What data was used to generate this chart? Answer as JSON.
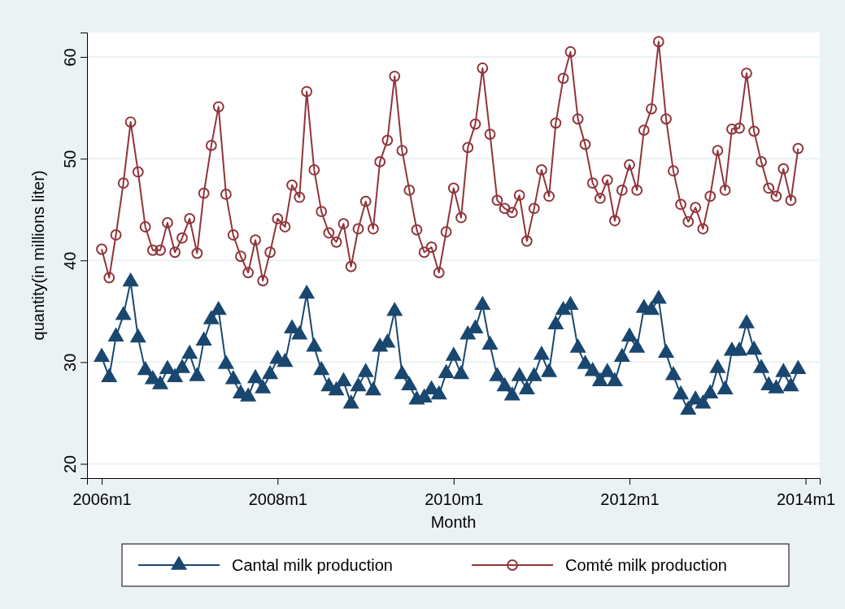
{
  "chart_data": {
    "type": "line",
    "xlabel": "Month",
    "ylabel": "quantity(in millions liter)",
    "x": [
      "2006-01",
      "2006-02",
      "2006-03",
      "2006-04",
      "2006-05",
      "2006-06",
      "2006-07",
      "2006-08",
      "2006-09",
      "2006-10",
      "2006-11",
      "2006-12",
      "2007-01",
      "2007-02",
      "2007-03",
      "2007-04",
      "2007-05",
      "2007-06",
      "2007-07",
      "2007-08",
      "2007-09",
      "2007-10",
      "2007-11",
      "2007-12",
      "2008-01",
      "2008-02",
      "2008-03",
      "2008-04",
      "2008-05",
      "2008-06",
      "2008-07",
      "2008-08",
      "2008-09",
      "2008-10",
      "2008-11",
      "2008-12",
      "2009-01",
      "2009-02",
      "2009-03",
      "2009-04",
      "2009-05",
      "2009-06",
      "2009-07",
      "2009-08",
      "2009-09",
      "2009-10",
      "2009-11",
      "2009-12",
      "2010-01",
      "2010-02",
      "2010-03",
      "2010-04",
      "2010-05",
      "2010-06",
      "2010-07",
      "2010-08",
      "2010-09",
      "2010-10",
      "2010-11",
      "2010-12",
      "2011-01",
      "2011-02",
      "2011-03",
      "2011-04",
      "2011-05",
      "2011-06",
      "2011-07",
      "2011-08",
      "2011-09",
      "2011-10",
      "2011-11",
      "2011-12",
      "2012-01",
      "2012-02",
      "2012-03",
      "2012-04",
      "2012-05",
      "2012-06",
      "2012-07",
      "2012-08",
      "2012-09",
      "2012-10",
      "2012-11",
      "2012-12",
      "2013-01",
      "2013-02",
      "2013-03",
      "2013-04",
      "2013-05",
      "2013-06",
      "2013-07",
      "2013-08",
      "2013-09",
      "2013-10",
      "2013-11",
      "2013-12"
    ],
    "series": [
      {
        "name": "Cantal milk production",
        "color": "#1a476f",
        "marker": "triangle",
        "values": [
          30.5,
          28.5,
          32.5,
          34.6,
          37.9,
          32.4,
          29.2,
          28.3,
          27.8,
          29.3,
          28.5,
          29.4,
          30.8,
          28.6,
          32.1,
          34.2,
          35.1,
          29.8,
          28.3,
          26.9,
          26.6,
          28.4,
          27.4,
          28.8,
          30.3,
          30.0,
          33.3,
          32.7,
          36.7,
          31.5,
          29.2,
          27.6,
          27.2,
          28.1,
          25.9,
          27.6,
          29.0,
          27.2,
          31.5,
          31.9,
          35.0,
          28.8,
          27.7,
          26.3,
          26.5,
          27.3,
          26.8,
          28.9,
          30.6,
          28.8,
          32.7,
          33.3,
          35.6,
          31.7,
          28.6,
          27.6,
          26.7,
          28.6,
          27.3,
          28.6,
          30.7,
          29.0,
          33.7,
          35.1,
          35.6,
          31.4,
          29.8,
          29.1,
          28.1,
          29.0,
          28.1,
          30.5,
          32.5,
          31.4,
          35.3,
          35.1,
          36.2,
          30.9,
          28.7,
          26.8,
          25.3,
          26.3,
          25.9,
          26.9,
          29.4,
          27.3,
          31.1,
          31.1,
          33.8,
          31.2,
          29.4,
          27.7,
          27.4,
          29.0,
          27.6,
          29.3
        ]
      },
      {
        "name": "Comté milk production",
        "color": "#90353b",
        "marker": "circle",
        "values": [
          41.1,
          38.3,
          42.5,
          47.6,
          53.6,
          48.7,
          43.3,
          41.0,
          41.0,
          43.7,
          40.8,
          42.2,
          44.1,
          40.7,
          46.6,
          51.3,
          55.1,
          46.5,
          42.5,
          40.4,
          38.8,
          42.0,
          38.0,
          40.8,
          44.1,
          43.3,
          47.4,
          46.2,
          56.6,
          48.9,
          44.8,
          42.7,
          41.8,
          43.6,
          39.4,
          43.1,
          45.8,
          43.1,
          49.7,
          51.8,
          58.1,
          50.8,
          46.9,
          43.0,
          40.8,
          41.3,
          38.8,
          42.8,
          47.1,
          44.2,
          51.1,
          53.4,
          58.9,
          52.4,
          45.9,
          45.1,
          44.7,
          46.4,
          41.9,
          45.1,
          48.9,
          46.3,
          53.5,
          57.9,
          60.5,
          53.9,
          51.4,
          47.6,
          46.1,
          47.9,
          43.9,
          46.9,
          49.4,
          46.9,
          52.8,
          54.9,
          61.5,
          53.9,
          48.8,
          45.5,
          43.8,
          45.2,
          43.1,
          46.3,
          50.8,
          46.9,
          52.9,
          53.0,
          58.4,
          52.7,
          49.7,
          47.1,
          46.3,
          49.0,
          45.9,
          51.0
        ]
      }
    ],
    "xlim": [
      "2005-11",
      "2014-03"
    ],
    "xticks": [
      {
        "value": "2006-01",
        "label": "2006m1"
      },
      {
        "value": "2008-01",
        "label": "2008m1"
      },
      {
        "value": "2010-01",
        "label": "2010m1"
      },
      {
        "value": "2012-01",
        "label": "2012m1"
      },
      {
        "value": "2014-01",
        "label": "2014m1"
      }
    ],
    "ylim": [
      18.6,
      62.4
    ],
    "yticks": [
      20,
      30,
      40,
      50,
      60
    ],
    "grid": "y",
    "legend": "bottom",
    "line_style": "solid"
  }
}
